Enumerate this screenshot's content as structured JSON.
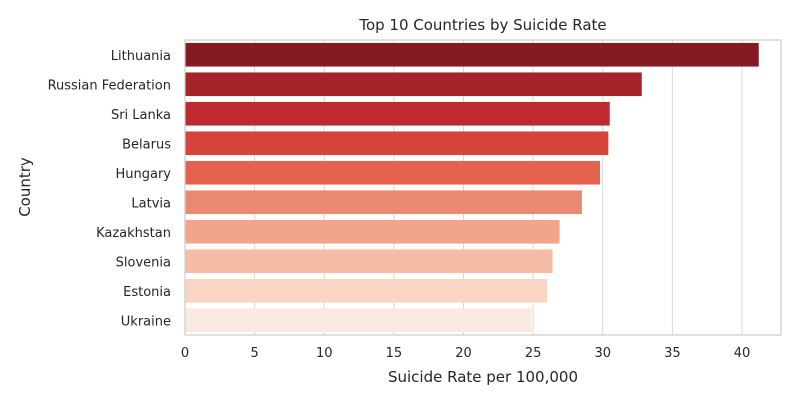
{
  "chart_data": {
    "type": "bar",
    "orientation": "horizontal",
    "title": "Top 10 Countries by Suicide Rate",
    "xlabel": "Suicide Rate per 100,000",
    "ylabel": "Country",
    "categories": [
      "Lithuania",
      "Russian Federation",
      "Sri Lanka",
      "Belarus",
      "Hungary",
      "Latvia",
      "Kazakhstan",
      "Slovenia",
      "Estonia",
      "Ukraine"
    ],
    "values": [
      41.2,
      32.8,
      30.5,
      30.4,
      29.8,
      28.5,
      26.9,
      26.4,
      26.0,
      24.9
    ],
    "colors": [
      "#861a22",
      "#a6232a",
      "#c0292f",
      "#d5433a",
      "#e5634d",
      "#eb8871",
      "#f2a58b",
      "#f5bda6",
      "#f9d5c6",
      "#fbe8e0"
    ],
    "xlim": [
      0,
      42.8
    ],
    "xticks": [
      0,
      5,
      10,
      15,
      20,
      25,
      30,
      35,
      40
    ],
    "grid": true,
    "legend": "none"
  }
}
